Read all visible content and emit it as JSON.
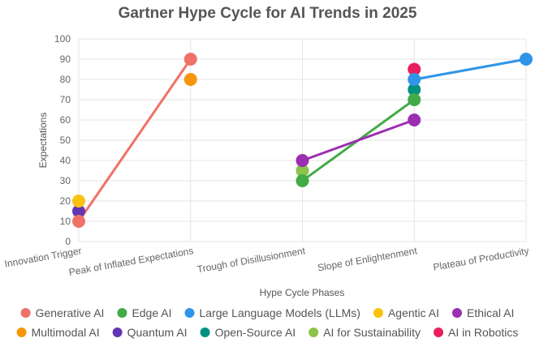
{
  "chart_data": {
    "type": "line",
    "title": "Gartner Hype Cycle for AI Trends in 2025",
    "xlabel": "Hype Cycle Phases",
    "ylabel": "Expectations",
    "categories": [
      "Innovation Trigger",
      "Peak of Inflated Expectations",
      "Trough of Disillusionment",
      "Slope of Enlightenment",
      "Plateau of Productivity"
    ],
    "ylim": [
      0,
      100
    ],
    "yticks": [
      "0",
      "10",
      "20",
      "30",
      "40",
      "50",
      "60",
      "70",
      "80",
      "90",
      "100"
    ],
    "grid": true,
    "legend_position": "bottom",
    "series": [
      {
        "name": "Generative AI",
        "color": "#f07167",
        "points": [
          [
            "Innovation Trigger",
            10
          ],
          [
            "Peak of Inflated Expectations",
            90
          ]
        ]
      },
      {
        "name": "Edge AI",
        "color": "#43aa47",
        "points": [
          [
            "Trough of Disillusionment",
            30
          ],
          [
            "Slope of Enlightenment",
            70
          ]
        ]
      },
      {
        "name": "Large Language Models (LLMs)",
        "color": "#2f95e8",
        "points": [
          [
            "Slope of Enlightenment",
            80
          ],
          [
            "Plateau of Productivity",
            90
          ]
        ]
      },
      {
        "name": "Agentic AI",
        "color": "#f8c20e",
        "points": [
          [
            "Innovation Trigger",
            20
          ]
        ]
      },
      {
        "name": "Ethical AI",
        "color": "#9b2fb1",
        "points": [
          [
            "Trough of Disillusionment",
            40
          ],
          [
            "Slope of Enlightenment",
            60
          ]
        ]
      },
      {
        "name": "Multimodal AI",
        "color": "#f7960d",
        "points": [
          [
            "Peak of Inflated Expectations",
            80
          ]
        ]
      },
      {
        "name": "Quantum AI",
        "color": "#6236b3",
        "points": [
          [
            "Innovation Trigger",
            15
          ]
        ]
      },
      {
        "name": "Open-Source AI",
        "color": "#03917f",
        "points": [
          [
            "Slope of Enlightenment",
            75
          ]
        ]
      },
      {
        "name": "AI for Sustainability",
        "color": "#8cc34a",
        "points": [
          [
            "Trough of Disillusionment",
            35
          ]
        ]
      },
      {
        "name": "AI in Robotics",
        "color": "#e81e5f",
        "points": [
          [
            "Slope of Enlightenment",
            85
          ]
        ]
      }
    ]
  }
}
